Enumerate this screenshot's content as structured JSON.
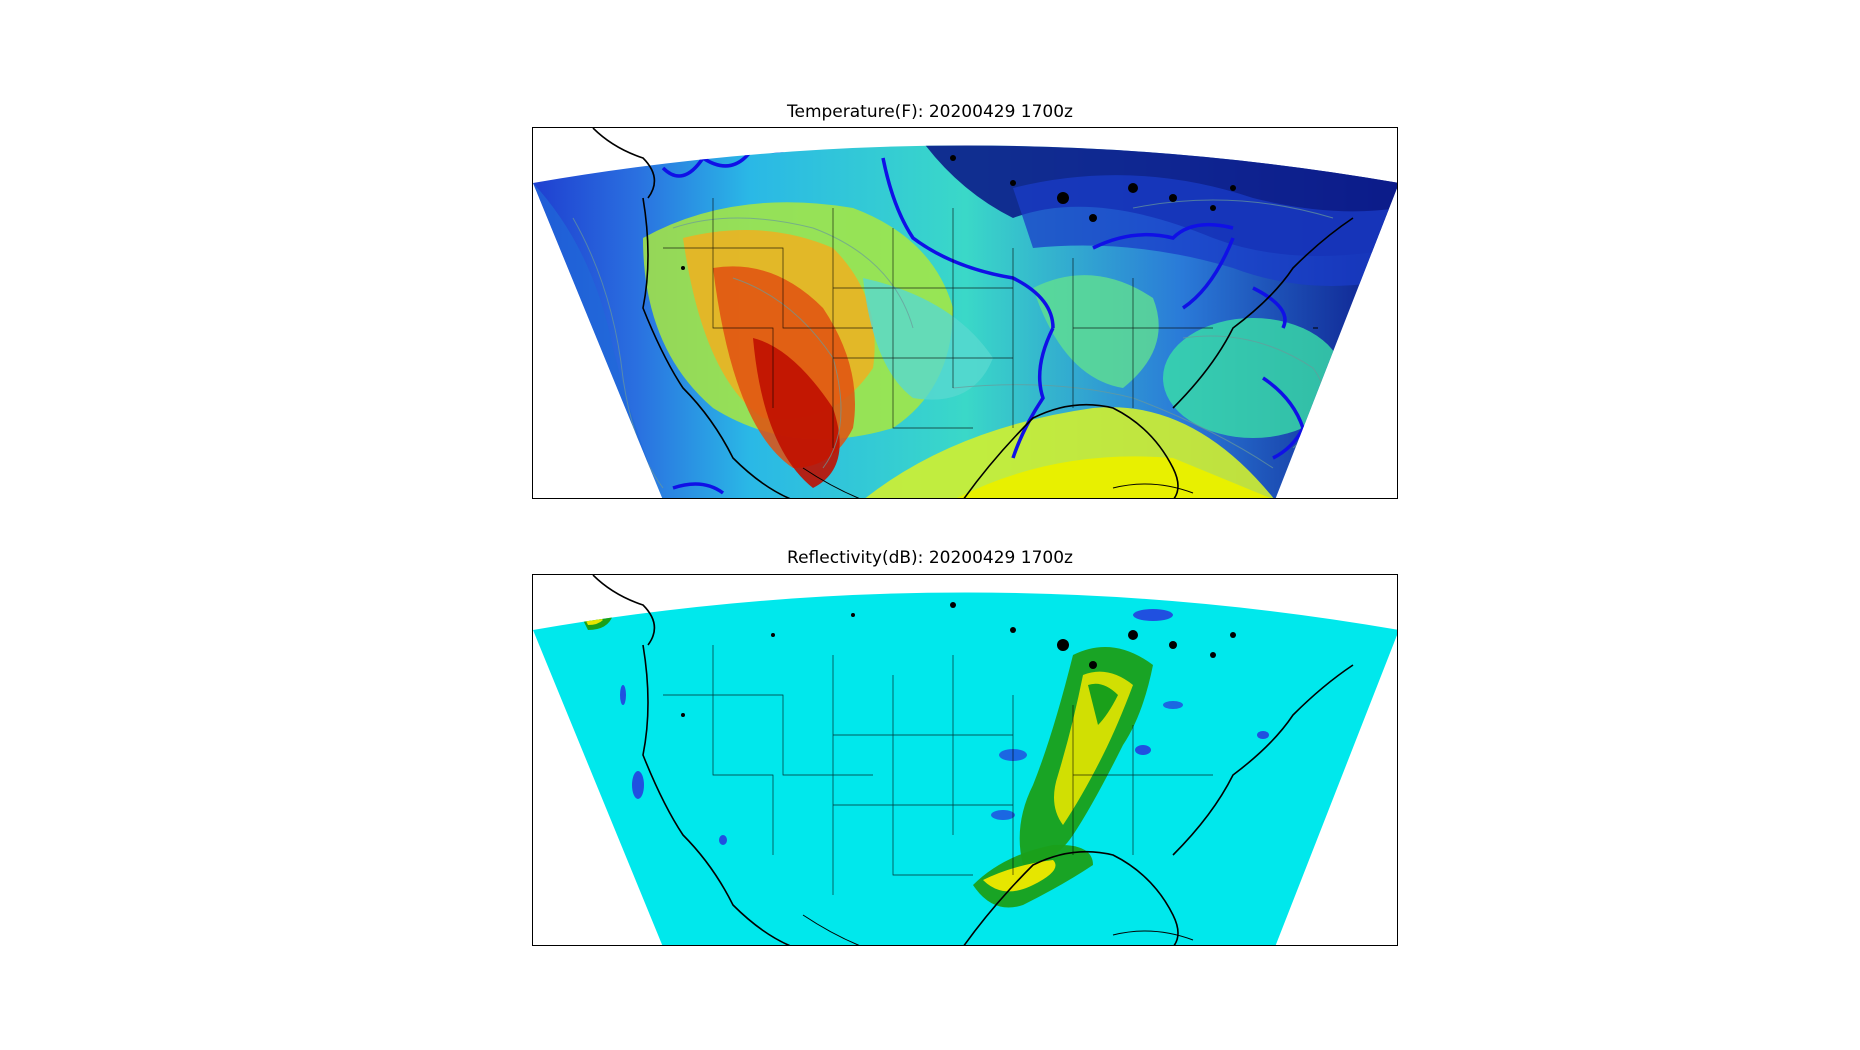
{
  "figure": {
    "panels": [
      {
        "id": "temperature",
        "title": "Temperature(F): 20200429 1700z"
      },
      {
        "id": "reflectivity",
        "title": "Reflectivity(dB): 20200429 1700z"
      }
    ]
  },
  "colors": {
    "temperature_cold": "#0a0a7a",
    "temperature_cool": "#1a4fd6",
    "temperature_mild": "#28c8e6",
    "temperature_warm": "#c8f040",
    "temperature_hot": "#e62800",
    "freezing_contour": "#1010e6",
    "reflectivity_background": "#00e8ec",
    "reflectivity_light": "#1aa01a",
    "reflectivity_moderate": "#e6e600",
    "reflectivity_low": "#2050e0",
    "coastline": "#000000"
  }
}
